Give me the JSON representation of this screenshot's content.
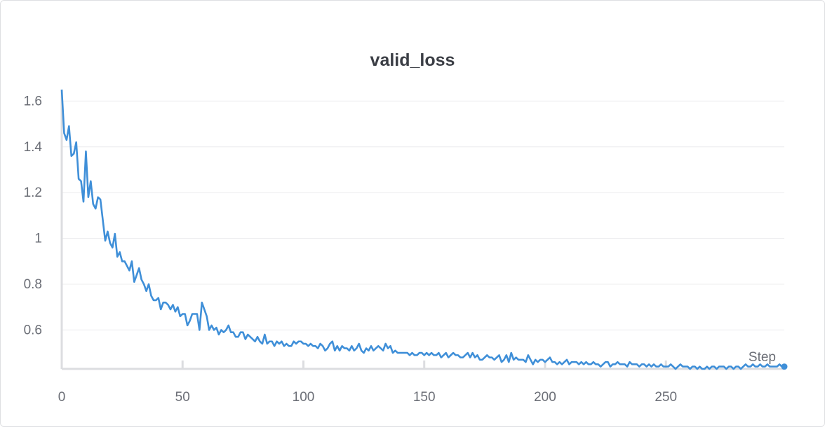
{
  "chart_data": {
    "type": "line",
    "title": "valid_loss",
    "xlabel": "Step",
    "ylabel": "",
    "xlim": [
      0,
      299
    ],
    "ylim": [
      0.43,
      1.65
    ],
    "x_ticks": [
      0,
      50,
      100,
      150,
      200,
      250
    ],
    "y_ticks": [
      0.6,
      0.8,
      1,
      1.2,
      1.4,
      1.6
    ],
    "y_tick_labels": [
      "0.6",
      "0.8",
      "1",
      "1.2",
      "1.4",
      "1.6"
    ],
    "grid": true,
    "line_color": "#3f8fd8",
    "series": [
      {
        "points": [
          [
            0,
            1.65
          ],
          [
            1,
            1.46
          ],
          [
            2,
            1.43
          ],
          [
            3,
            1.49
          ],
          [
            4,
            1.36
          ],
          [
            5,
            1.37
          ],
          [
            6,
            1.42
          ],
          [
            7,
            1.26
          ],
          [
            8,
            1.25
          ],
          [
            9,
            1.16
          ],
          [
            10,
            1.38
          ],
          [
            11,
            1.18
          ],
          [
            12,
            1.25
          ],
          [
            13,
            1.15
          ],
          [
            14,
            1.13
          ],
          [
            15,
            1.18
          ],
          [
            16,
            1.17
          ],
          [
            17,
            1.08
          ],
          [
            18,
            0.99
          ],
          [
            19,
            1.03
          ],
          [
            20,
            0.98
          ],
          [
            21,
            0.96
          ],
          [
            22,
            1.02
          ],
          [
            23,
            0.92
          ],
          [
            24,
            0.94
          ],
          [
            25,
            0.9
          ],
          [
            26,
            0.9
          ],
          [
            27,
            0.88
          ],
          [
            28,
            0.86
          ],
          [
            29,
            0.9
          ],
          [
            30,
            0.81
          ],
          [
            31,
            0.84
          ],
          [
            32,
            0.87
          ],
          [
            33,
            0.82
          ],
          [
            34,
            0.8
          ],
          [
            35,
            0.77
          ],
          [
            36,
            0.8
          ],
          [
            37,
            0.75
          ],
          [
            38,
            0.73
          ],
          [
            39,
            0.73
          ],
          [
            40,
            0.74
          ],
          [
            41,
            0.69
          ],
          [
            42,
            0.72
          ],
          [
            43,
            0.72
          ],
          [
            44,
            0.71
          ],
          [
            45,
            0.69
          ],
          [
            46,
            0.71
          ],
          [
            47,
            0.68
          ],
          [
            48,
            0.7
          ],
          [
            49,
            0.66
          ],
          [
            50,
            0.67
          ],
          [
            51,
            0.67
          ],
          [
            52,
            0.62
          ],
          [
            53,
            0.64
          ],
          [
            54,
            0.67
          ],
          [
            55,
            0.67
          ],
          [
            56,
            0.67
          ],
          [
            57,
            0.6
          ],
          [
            58,
            0.72
          ],
          [
            59,
            0.69
          ],
          [
            60,
            0.66
          ],
          [
            61,
            0.6
          ],
          [
            62,
            0.62
          ],
          [
            63,
            0.6
          ],
          [
            64,
            0.61
          ],
          [
            65,
            0.58
          ],
          [
            66,
            0.6
          ],
          [
            67,
            0.59
          ],
          [
            68,
            0.6
          ],
          [
            69,
            0.62
          ],
          [
            70,
            0.59
          ],
          [
            71,
            0.59
          ],
          [
            72,
            0.57
          ],
          [
            73,
            0.57
          ],
          [
            74,
            0.59
          ],
          [
            75,
            0.59
          ],
          [
            76,
            0.56
          ],
          [
            77,
            0.58
          ],
          [
            78,
            0.57
          ],
          [
            79,
            0.56
          ],
          [
            80,
            0.55
          ],
          [
            81,
            0.57
          ],
          [
            82,
            0.55
          ],
          [
            83,
            0.54
          ],
          [
            84,
            0.58
          ],
          [
            85,
            0.54
          ],
          [
            86,
            0.55
          ],
          [
            87,
            0.55
          ],
          [
            88,
            0.53
          ],
          [
            89,
            0.55
          ],
          [
            90,
            0.54
          ],
          [
            91,
            0.55
          ],
          [
            92,
            0.53
          ],
          [
            93,
            0.54
          ],
          [
            94,
            0.53
          ],
          [
            95,
            0.53
          ],
          [
            96,
            0.55
          ],
          [
            97,
            0.54
          ],
          [
            98,
            0.55
          ],
          [
            99,
            0.55
          ],
          [
            100,
            0.54
          ],
          [
            101,
            0.54
          ],
          [
            102,
            0.53
          ],
          [
            103,
            0.54
          ],
          [
            104,
            0.53
          ],
          [
            105,
            0.53
          ],
          [
            106,
            0.52
          ],
          [
            107,
            0.54
          ],
          [
            108,
            0.53
          ],
          [
            109,
            0.51
          ],
          [
            110,
            0.52
          ],
          [
            111,
            0.54
          ],
          [
            112,
            0.55
          ],
          [
            113,
            0.51
          ],
          [
            114,
            0.53
          ],
          [
            115,
            0.51
          ],
          [
            116,
            0.53
          ],
          [
            117,
            0.52
          ],
          [
            118,
            0.52
          ],
          [
            119,
            0.51
          ],
          [
            120,
            0.53
          ],
          [
            121,
            0.51
          ],
          [
            122,
            0.52
          ],
          [
            123,
            0.54
          ],
          [
            124,
            0.51
          ],
          [
            125,
            0.5
          ],
          [
            126,
            0.52
          ],
          [
            127,
            0.51
          ],
          [
            128,
            0.53
          ],
          [
            129,
            0.51
          ],
          [
            130,
            0.52
          ],
          [
            131,
            0.53
          ],
          [
            132,
            0.52
          ],
          [
            133,
            0.51
          ],
          [
            134,
            0.54
          ],
          [
            135,
            0.52
          ],
          [
            136,
            0.53
          ],
          [
            137,
            0.5
          ],
          [
            138,
            0.51
          ],
          [
            139,
            0.5
          ],
          [
            140,
            0.5
          ],
          [
            141,
            0.5
          ],
          [
            142,
            0.5
          ],
          [
            143,
            0.5
          ],
          [
            144,
            0.49
          ],
          [
            145,
            0.5
          ],
          [
            146,
            0.49
          ],
          [
            147,
            0.49
          ],
          [
            148,
            0.5
          ],
          [
            149,
            0.5
          ],
          [
            150,
            0.49
          ],
          [
            151,
            0.5
          ],
          [
            152,
            0.49
          ],
          [
            153,
            0.5
          ],
          [
            154,
            0.49
          ],
          [
            155,
            0.49
          ],
          [
            156,
            0.5
          ],
          [
            157,
            0.48
          ],
          [
            158,
            0.49
          ],
          [
            159,
            0.5
          ],
          [
            160,
            0.48
          ],
          [
            161,
            0.49
          ],
          [
            162,
            0.5
          ],
          [
            163,
            0.49
          ],
          [
            164,
            0.49
          ],
          [
            165,
            0.48
          ],
          [
            166,
            0.48
          ],
          [
            167,
            0.49
          ],
          [
            168,
            0.5
          ],
          [
            169,
            0.48
          ],
          [
            170,
            0.5
          ],
          [
            171,
            0.48
          ],
          [
            172,
            0.49
          ],
          [
            173,
            0.47
          ],
          [
            174,
            0.47
          ],
          [
            175,
            0.48
          ],
          [
            176,
            0.49
          ],
          [
            177,
            0.48
          ],
          [
            178,
            0.48
          ],
          [
            179,
            0.47
          ],
          [
            180,
            0.48
          ],
          [
            181,
            0.49
          ],
          [
            182,
            0.46
          ],
          [
            183,
            0.47
          ],
          [
            184,
            0.49
          ],
          [
            185,
            0.46
          ],
          [
            186,
            0.5
          ],
          [
            187,
            0.47
          ],
          [
            188,
            0.48
          ],
          [
            189,
            0.47
          ],
          [
            190,
            0.47
          ],
          [
            191,
            0.47
          ],
          [
            192,
            0.46
          ],
          [
            193,
            0.49
          ],
          [
            194,
            0.47
          ],
          [
            195,
            0.45
          ],
          [
            196,
            0.47
          ],
          [
            197,
            0.46
          ],
          [
            198,
            0.47
          ],
          [
            199,
            0.47
          ],
          [
            200,
            0.46
          ],
          [
            201,
            0.47
          ],
          [
            202,
            0.48
          ],
          [
            203,
            0.46
          ],
          [
            204,
            0.46
          ],
          [
            205,
            0.45
          ],
          [
            206,
            0.46
          ],
          [
            207,
            0.45
          ],
          [
            208,
            0.46
          ],
          [
            209,
            0.47
          ],
          [
            210,
            0.45
          ],
          [
            211,
            0.46
          ],
          [
            212,
            0.46
          ],
          [
            213,
            0.46
          ],
          [
            214,
            0.45
          ],
          [
            215,
            0.46
          ],
          [
            216,
            0.45
          ],
          [
            217,
            0.46
          ],
          [
            218,
            0.45
          ],
          [
            219,
            0.45
          ],
          [
            220,
            0.46
          ],
          [
            221,
            0.45
          ],
          [
            222,
            0.45
          ],
          [
            223,
            0.44
          ],
          [
            224,
            0.45
          ],
          [
            225,
            0.46
          ],
          [
            226,
            0.46
          ],
          [
            227,
            0.44
          ],
          [
            228,
            0.45
          ],
          [
            229,
            0.45
          ],
          [
            230,
            0.46
          ],
          [
            231,
            0.45
          ],
          [
            232,
            0.45
          ],
          [
            233,
            0.45
          ],
          [
            234,
            0.44
          ],
          [
            235,
            0.46
          ],
          [
            236,
            0.45
          ],
          [
            237,
            0.45
          ],
          [
            238,
            0.45
          ],
          [
            239,
            0.44
          ],
          [
            240,
            0.45
          ],
          [
            241,
            0.45
          ],
          [
            242,
            0.44
          ],
          [
            243,
            0.45
          ],
          [
            244,
            0.44
          ],
          [
            245,
            0.45
          ],
          [
            246,
            0.44
          ],
          [
            247,
            0.44
          ],
          [
            248,
            0.45
          ],
          [
            249,
            0.44
          ],
          [
            250,
            0.44
          ],
          [
            251,
            0.44
          ],
          [
            252,
            0.45
          ],
          [
            253,
            0.44
          ],
          [
            254,
            0.43
          ],
          [
            255,
            0.44
          ],
          [
            256,
            0.45
          ],
          [
            257,
            0.44
          ],
          [
            258,
            0.44
          ],
          [
            259,
            0.44
          ],
          [
            260,
            0.43
          ],
          [
            261,
            0.44
          ],
          [
            262,
            0.44
          ],
          [
            263,
            0.43
          ],
          [
            264,
            0.44
          ],
          [
            265,
            0.43
          ],
          [
            266,
            0.43
          ],
          [
            267,
            0.44
          ],
          [
            268,
            0.43
          ],
          [
            269,
            0.44
          ],
          [
            270,
            0.44
          ],
          [
            271,
            0.43
          ],
          [
            272,
            0.44
          ],
          [
            273,
            0.44
          ],
          [
            274,
            0.44
          ],
          [
            275,
            0.43
          ],
          [
            276,
            0.44
          ],
          [
            277,
            0.44
          ],
          [
            278,
            0.43
          ],
          [
            279,
            0.44
          ],
          [
            280,
            0.44
          ],
          [
            281,
            0.43
          ],
          [
            282,
            0.44
          ],
          [
            283,
            0.45
          ],
          [
            284,
            0.44
          ],
          [
            285,
            0.44
          ],
          [
            286,
            0.45
          ],
          [
            287,
            0.44
          ],
          [
            288,
            0.44
          ],
          [
            289,
            0.45
          ],
          [
            290,
            0.44
          ],
          [
            291,
            0.44
          ],
          [
            292,
            0.45
          ],
          [
            293,
            0.44
          ],
          [
            294,
            0.44
          ],
          [
            295,
            0.44
          ],
          [
            296,
            0.44
          ],
          [
            297,
            0.45
          ],
          [
            298,
            0.44
          ],
          [
            299,
            0.44
          ]
        ]
      }
    ]
  }
}
